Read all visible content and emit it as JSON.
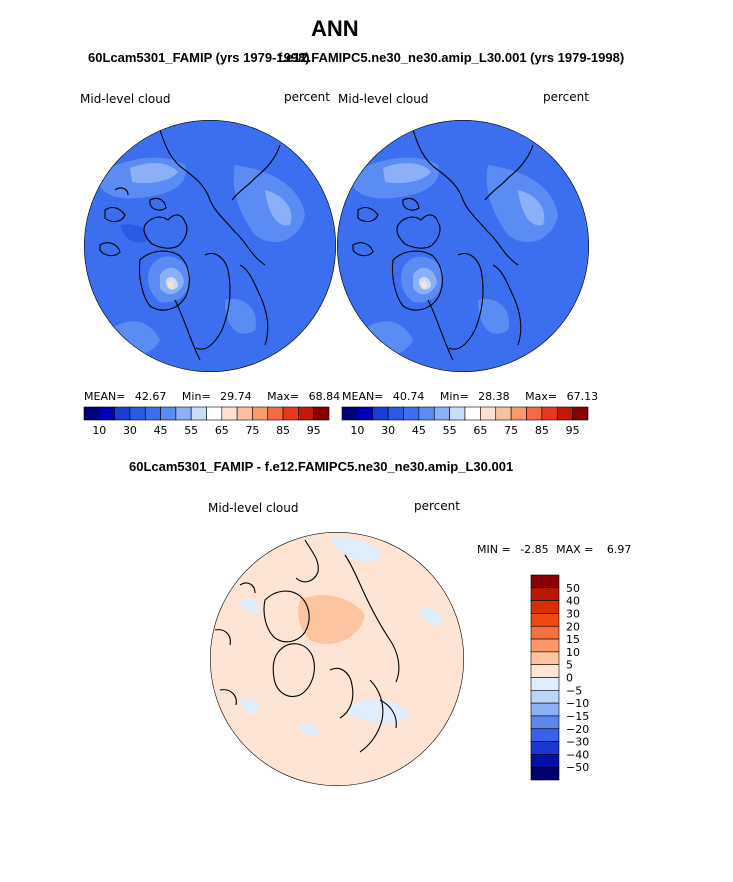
{
  "page": {
    "title": "ANN",
    "panel_a_subtitle": "60Lcam5301_FAMIP (yrs 1979-1998)",
    "panel_b_subtitle": "f.e12.FAMIPC5.ne30_ne30.amip_L30.001 (yrs 1979-1998)",
    "diff_subtitle": "60Lcam5301_FAMIP - f.e12.FAMIPC5.ne30_ne30.amip_L30.001"
  },
  "chart_data": [
    {
      "type": "heatmap",
      "projection": "north-polar-stereographic",
      "variable": "Mid-level cloud",
      "units": "percent",
      "stats": {
        "mean_label": "MEAN=",
        "mean": "42.67",
        "min_label": "Min=",
        "min": "29.74",
        "max_label": "Max=",
        "max": "68.84"
      },
      "colorbar": {
        "levels": [
          10,
          20,
          30,
          35,
          40,
          45,
          50,
          55,
          60,
          65,
          70,
          75,
          80,
          85,
          90,
          95
        ],
        "tick_labels": [
          "10",
          "30",
          "45",
          "55",
          "65",
          "75",
          "85",
          "95"
        ],
        "colors": [
          "#00007a",
          "#0000b8",
          "#1a3fd6",
          "#2a5ae6",
          "#3a70f0",
          "#5a8cf4",
          "#8cb0f8",
          "#c8dcfc",
          "#ffffff",
          "#fde0d0",
          "#fcc0a0",
          "#fb9a6e",
          "#f66a40",
          "#e83a1a",
          "#c41808",
          "#8a0000"
        ]
      }
    },
    {
      "type": "heatmap",
      "projection": "north-polar-stereographic",
      "variable": "Mid-level cloud",
      "units": "percent",
      "stats": {
        "mean_label": "MEAN=",
        "mean": "40.74",
        "min_label": "Min=",
        "min": "28.38",
        "max_label": "Max=",
        "max": "67.13"
      },
      "colorbar": {
        "levels": [
          10,
          20,
          30,
          35,
          40,
          45,
          50,
          55,
          60,
          65,
          70,
          75,
          80,
          85,
          90,
          95
        ],
        "tick_labels": [
          "10",
          "30",
          "45",
          "55",
          "65",
          "75",
          "85",
          "95"
        ],
        "colors": [
          "#00007a",
          "#0000b8",
          "#1a3fd6",
          "#2a5ae6",
          "#3a70f0",
          "#5a8cf4",
          "#8cb0f8",
          "#c8dcfc",
          "#ffffff",
          "#fde0d0",
          "#fcc0a0",
          "#fb9a6e",
          "#f66a40",
          "#e83a1a",
          "#c41808",
          "#8a0000"
        ]
      }
    },
    {
      "type": "heatmap",
      "projection": "north-polar-stereographic",
      "variable": "Mid-level cloud",
      "units": "percent",
      "stats": {
        "min_label": "MIN =",
        "min": "-2.85",
        "max_label": "MAX =",
        "max": "6.97"
      },
      "colorbar": {
        "tick_labels": [
          "50",
          "40",
          "30",
          "20",
          "15",
          "10",
          "5",
          "0",
          "−5",
          "−10",
          "−15",
          "−20",
          "−30",
          "−40",
          "−50"
        ],
        "colors": [
          "#8a0000",
          "#b81a00",
          "#d83000",
          "#f04810",
          "#f87040",
          "#fc9868",
          "#fcc4a0",
          "#fde4d4",
          "#e0eefc",
          "#bcd4f8",
          "#8cb0f4",
          "#5a88f0",
          "#3a60e8",
          "#1a38d0",
          "#0010a8",
          "#00006a"
        ]
      }
    }
  ]
}
